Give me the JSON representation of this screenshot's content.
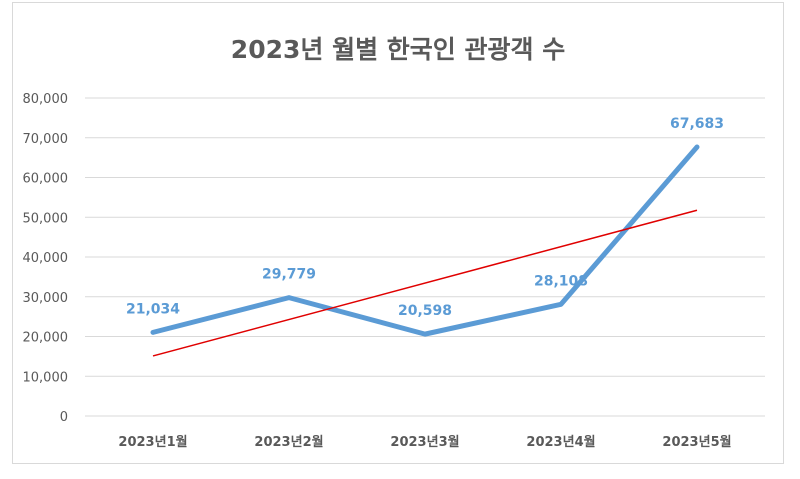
{
  "chart_data": {
    "type": "line",
    "title": "2023년 월별 한국인 관광객 수",
    "categories": [
      "2023년1월",
      "2023년2월",
      "2023년3월",
      "2023년4월",
      "2023년5월"
    ],
    "series": [
      {
        "values": [
          21034,
          29779,
          20598,
          28108,
          67683
        ],
        "color": "#5b9bd5"
      }
    ],
    "data_labels": [
      "21,034",
      "29,779",
      "20,598",
      "28,108",
      "67,683"
    ],
    "trendline": {
      "type": "linear",
      "color": "#e00000"
    },
    "ylim": [
      0,
      80000
    ],
    "yticks": [
      0,
      10000,
      20000,
      30000,
      40000,
      50000,
      60000,
      70000,
      80000
    ],
    "ytick_labels": [
      "0",
      "10,000",
      "20,000",
      "30,000",
      "40,000",
      "50,000",
      "60,000",
      "70,000",
      "80,000"
    ],
    "grid": true,
    "legend": "none"
  }
}
